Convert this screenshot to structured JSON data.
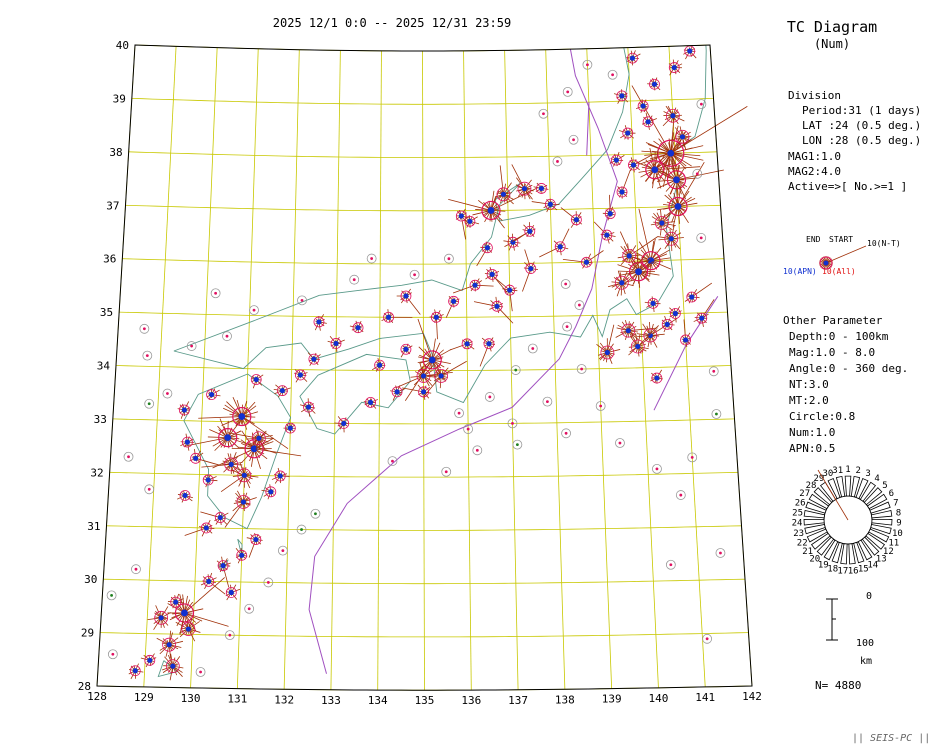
{
  "header": {
    "period_text": "2025 12/1 0:0 -- 2025 12/31 23:59",
    "title": "TC Diagram",
    "subtitle": "(Num)"
  },
  "division": {
    "heading": "Division",
    "lines": [
      "Period:31 (1 days)",
      "LAT   :24 (0.5 deg.)",
      "LON   :28 (0.5 deg.)"
    ],
    "mag_lines": [
      "MAG1:1.0",
      "MAG2:4.0",
      "Active=>[ No.>=1 ]"
    ]
  },
  "legend_symbol": {
    "end_label": "END",
    "start_label": "START",
    "nt_label": "10(N-T)",
    "apn_label": "10(APN)",
    "all_label": "10(All)",
    "apn_color": "#1030d0",
    "all_color": "#e01010"
  },
  "other_parameter": {
    "heading": "Other Parameter",
    "lines": [
      "Depth:0 - 100km",
      "Mag:1.0 - 8.0",
      "Angle:0 - 360 deg.",
      "NT:3.0",
      "MT:2.0",
      "Circle:0.8",
      "Num:1.0",
      "APN:0.5"
    ]
  },
  "clock_dial": {
    "days": [
      "1",
      "2",
      "3",
      "4",
      "5",
      "6",
      "7",
      "8",
      "9",
      "10",
      "11",
      "12",
      "13",
      "14",
      "15",
      "16",
      "17",
      "18",
      "19",
      "20",
      "21",
      "22",
      "23",
      "24",
      "25",
      "26",
      "27",
      "28",
      "29",
      "30",
      "31"
    ]
  },
  "depth_scale": {
    "top_label": "0",
    "bottom_label": "100",
    "unit": "km"
  },
  "count": {
    "text": "N= 4880"
  },
  "footer": {
    "credit": "|| SEIS-PC ||"
  },
  "map": {
    "lat_ticks": [
      "40",
      "39",
      "38",
      "37",
      "36",
      "35",
      "34",
      "33",
      "32",
      "31",
      "30",
      "29",
      "28"
    ],
    "lon_ticks": [
      "128",
      "129",
      "130",
      "131",
      "132",
      "133",
      "134",
      "135",
      "136",
      "137",
      "138",
      "139",
      "140",
      "141",
      "142"
    ],
    "lat_range": [
      28,
      40
    ],
    "lon_range": [
      128,
      142
    ],
    "colors": {
      "grid": "#c8c800",
      "coast": "#5a9a8a",
      "trench": "#a050c0",
      "tail": "#a03008",
      "ring": "#e01060",
      "apn": "#1030d0",
      "green": "#208020"
    },
    "events": [
      [
        38.0,
        140.9,
        5
      ],
      [
        37.7,
        140.5,
        4
      ],
      [
        37.5,
        141.0,
        4
      ],
      [
        38.3,
        141.2,
        3
      ],
      [
        38.7,
        141.0,
        3
      ],
      [
        37.0,
        141.0,
        4
      ],
      [
        36.7,
        140.6,
        3
      ],
      [
        36.4,
        140.8,
        3
      ],
      [
        36.0,
        140.3,
        4
      ],
      [
        35.8,
        140.0,
        4
      ],
      [
        36.1,
        139.8,
        3
      ],
      [
        35.6,
        139.6,
        3
      ],
      [
        37.0,
        136.6,
        4
      ],
      [
        37.3,
        136.9,
        3
      ],
      [
        37.4,
        137.4,
        3
      ],
      [
        37.4,
        137.8,
        2
      ],
      [
        36.8,
        136.1,
        2
      ],
      [
        36.4,
        137.1,
        2
      ],
      [
        34.2,
        135.2,
        4
      ],
      [
        33.9,
        135.0,
        3
      ],
      [
        33.9,
        135.4,
        3
      ],
      [
        33.6,
        135.0,
        2
      ],
      [
        34.5,
        136.0,
        2
      ],
      [
        34.5,
        136.5,
        2
      ],
      [
        33.1,
        130.9,
        4
      ],
      [
        32.7,
        130.6,
        4
      ],
      [
        32.5,
        131.2,
        4
      ],
      [
        32.7,
        131.3,
        3
      ],
      [
        32.2,
        130.7,
        3
      ],
      [
        32.0,
        131.0,
        3
      ],
      [
        31.5,
        131.0,
        3
      ],
      [
        31.2,
        130.5,
        2
      ],
      [
        31.0,
        130.2,
        2
      ],
      [
        30.8,
        131.3,
        2
      ],
      [
        30.3,
        130.6,
        2
      ],
      [
        30.0,
        130.3,
        2
      ],
      [
        29.4,
        129.8,
        4
      ],
      [
        29.1,
        129.9,
        3
      ],
      [
        29.3,
        129.3,
        3
      ],
      [
        28.8,
        129.5,
        3
      ],
      [
        28.4,
        129.6,
        3
      ],
      [
        28.5,
        129.1,
        2
      ],
      [
        34.7,
        139.7,
        3
      ],
      [
        34.6,
        140.2,
        3
      ],
      [
        34.4,
        139.9,
        3
      ],
      [
        34.3,
        139.2,
        3
      ],
      [
        34.8,
        140.6,
        2
      ],
      [
        33.8,
        140.3,
        2
      ],
      [
        35.2,
        140.3,
        2
      ],
      [
        35.0,
        140.8,
        2
      ],
      [
        35.3,
        141.2,
        2
      ],
      [
        34.9,
        141.4,
        2
      ],
      [
        34.5,
        141.0,
        2
      ],
      [
        36.5,
        139.3,
        2
      ],
      [
        36.0,
        138.8,
        2
      ],
      [
        36.3,
        138.2,
        2
      ],
      [
        35.9,
        137.5,
        2
      ],
      [
        35.5,
        137.0,
        2
      ],
      [
        35.2,
        136.7,
        2
      ],
      [
        35.6,
        136.2,
        2
      ],
      [
        35.3,
        135.7,
        2
      ],
      [
        35.0,
        135.3,
        2
      ],
      [
        35.4,
        134.6,
        2
      ],
      [
        35.0,
        134.2,
        2
      ],
      [
        34.8,
        133.5,
        2
      ],
      [
        34.5,
        133.0,
        2
      ],
      [
        34.9,
        132.6,
        2
      ],
      [
        34.2,
        132.5,
        2
      ],
      [
        33.9,
        132.2,
        2
      ],
      [
        33.6,
        131.8,
        2
      ],
      [
        33.8,
        131.2,
        2
      ],
      [
        33.3,
        132.4,
        2
      ],
      [
        32.9,
        132.0,
        2
      ],
      [
        33.0,
        133.2,
        2
      ],
      [
        33.4,
        133.8,
        2
      ],
      [
        33.6,
        134.4,
        2
      ],
      [
        34.1,
        134.0,
        2
      ],
      [
        34.4,
        134.6,
        2
      ],
      [
        37.9,
        139.6,
        2
      ],
      [
        38.4,
        139.9,
        2
      ],
      [
        38.9,
        140.3,
        2
      ],
      [
        39.3,
        140.6,
        2
      ],
      [
        39.6,
        141.1,
        2
      ],
      [
        39.9,
        141.5,
        2
      ],
      [
        39.8,
        140.1,
        2
      ],
      [
        39.1,
        139.8,
        2
      ],
      [
        38.6,
        140.4,
        2
      ],
      [
        37.8,
        140.0,
        2
      ],
      [
        37.3,
        139.7,
        2
      ],
      [
        36.9,
        139.4,
        2
      ],
      [
        36.8,
        138.6,
        2
      ],
      [
        37.1,
        138.0,
        2
      ],
      [
        36.6,
        137.5,
        2
      ],
      [
        36.3,
        136.5,
        2
      ],
      [
        36.9,
        135.9,
        2
      ],
      [
        35.8,
        136.6,
        2
      ],
      [
        32.3,
        129.9,
        2
      ],
      [
        32.6,
        129.7,
        2
      ],
      [
        33.2,
        129.6,
        2
      ],
      [
        33.5,
        130.2,
        2
      ],
      [
        31.9,
        130.2,
        2
      ],
      [
        31.6,
        129.7,
        2
      ],
      [
        31.7,
        131.6,
        2
      ],
      [
        32.0,
        131.8,
        2
      ],
      [
        30.5,
        131.0,
        2
      ],
      [
        29.8,
        130.8,
        2
      ],
      [
        29.6,
        129.6,
        2
      ],
      [
        28.3,
        128.8,
        2
      ],
      [
        28.6,
        128.3,
        1
      ],
      [
        28.3,
        130.2,
        1
      ],
      [
        29.0,
        130.8,
        1
      ],
      [
        29.5,
        131.2,
        1
      ],
      [
        30.0,
        131.6,
        1
      ],
      [
        30.6,
        131.9,
        1
      ],
      [
        31.0,
        132.3,
        1
      ],
      [
        31.3,
        132.6,
        1
      ],
      [
        32.3,
        128.4,
        1
      ],
      [
        31.7,
        128.9,
        1
      ],
      [
        30.2,
        128.7,
        1
      ],
      [
        29.7,
        128.2,
        1
      ],
      [
        34.7,
        128.6,
        1
      ],
      [
        34.2,
        128.7,
        1
      ],
      [
        33.5,
        129.2,
        1
      ],
      [
        33.3,
        128.8,
        1
      ],
      [
        34.4,
        129.7,
        1
      ],
      [
        34.6,
        130.5,
        1
      ],
      [
        35.4,
        130.2,
        1
      ],
      [
        35.1,
        131.1,
        1
      ],
      [
        35.3,
        132.2,
        1
      ],
      [
        35.7,
        133.4,
        1
      ],
      [
        35.8,
        134.8,
        1
      ],
      [
        36.1,
        135.6,
        1
      ],
      [
        32.3,
        134.3,
        1
      ],
      [
        32.1,
        135.5,
        1
      ],
      [
        32.5,
        136.2,
        1
      ],
      [
        32.6,
        137.1,
        1
      ],
      [
        32.8,
        138.2,
        1
      ],
      [
        33.3,
        139.0,
        1
      ],
      [
        32.6,
        139.4,
        1
      ],
      [
        32.1,
        140.2,
        1
      ],
      [
        31.6,
        140.7,
        1
      ],
      [
        30.5,
        141.5,
        1
      ],
      [
        30.3,
        140.4,
        1
      ],
      [
        28.9,
        141.1,
        1
      ],
      [
        33.1,
        141.6,
        1
      ],
      [
        32.3,
        141.0,
        1
      ],
      [
        33.9,
        141.6,
        1
      ],
      [
        36.4,
        141.5,
        1
      ],
      [
        37.6,
        141.5,
        1
      ],
      [
        38.9,
        141.7,
        1
      ],
      [
        39.5,
        139.6,
        1
      ],
      [
        38.3,
        138.6,
        1
      ],
      [
        37.9,
        138.2,
        1
      ],
      [
        39.2,
        138.5,
        1
      ],
      [
        39.7,
        139.0,
        1
      ],
      [
        38.8,
        137.9,
        1
      ],
      [
        35.6,
        138.3,
        1
      ],
      [
        35.2,
        138.6,
        1
      ],
      [
        34.8,
        138.3,
        1
      ],
      [
        34.4,
        137.5,
        1
      ],
      [
        34.0,
        137.1,
        1
      ],
      [
        33.5,
        136.5,
        1
      ],
      [
        33.2,
        135.8,
        1
      ],
      [
        33.0,
        137.0,
        1
      ],
      [
        32.9,
        136.0,
        1
      ],
      [
        33.4,
        137.8,
        1
      ],
      [
        34.0,
        138.6,
        1
      ],
      [
        36.1,
        133.8,
        1
      ]
    ]
  }
}
